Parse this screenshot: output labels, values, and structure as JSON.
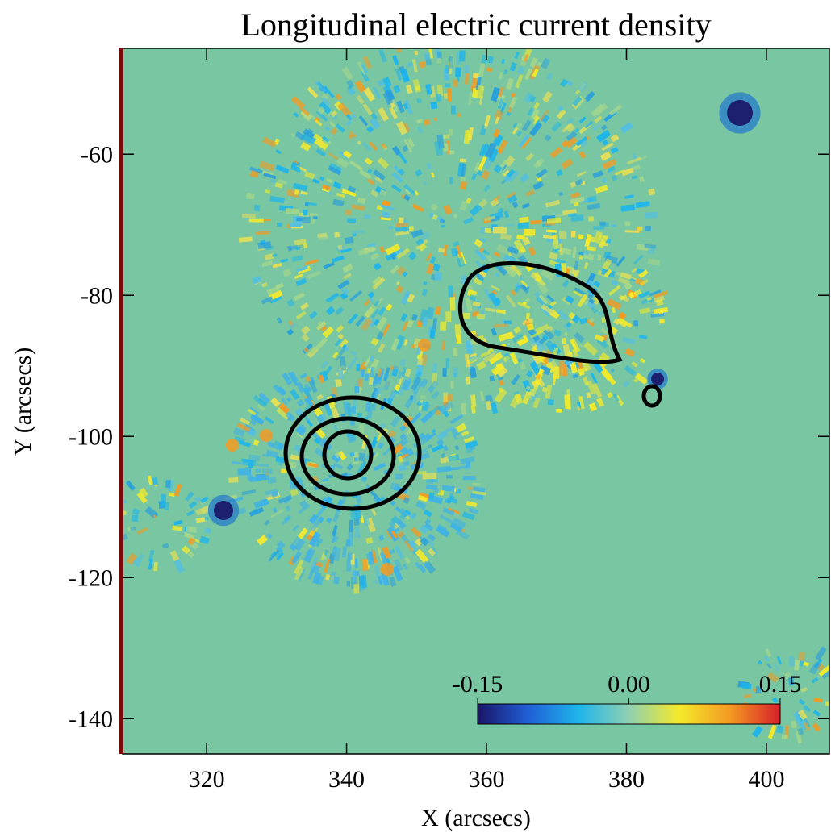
{
  "chart_data": {
    "type": "image",
    "title": "Longitudinal electric current density",
    "x_label": "X (arcsecs)",
    "y_label": "Y (arcsecs)",
    "xlim": [
      308,
      409
    ],
    "ylim": [
      -145,
      -45
    ],
    "xticks": [
      320,
      340,
      360,
      380,
      400
    ],
    "yticks": [
      -60,
      -80,
      -100,
      -120,
      -140
    ],
    "colorbar": {
      "lim": [
        -0.15,
        0.15
      ],
      "ticks": [
        -0.15,
        {
          "value": 0,
          "label": "0.00"
        },
        0.15
      ],
      "colormap": [
        "#1a1466",
        "#1f5fd6",
        "#1fb5ea",
        "#8fd0b0",
        "#f4ea2a",
        "#f39a22",
        "#d8202a"
      ]
    }
  }
}
